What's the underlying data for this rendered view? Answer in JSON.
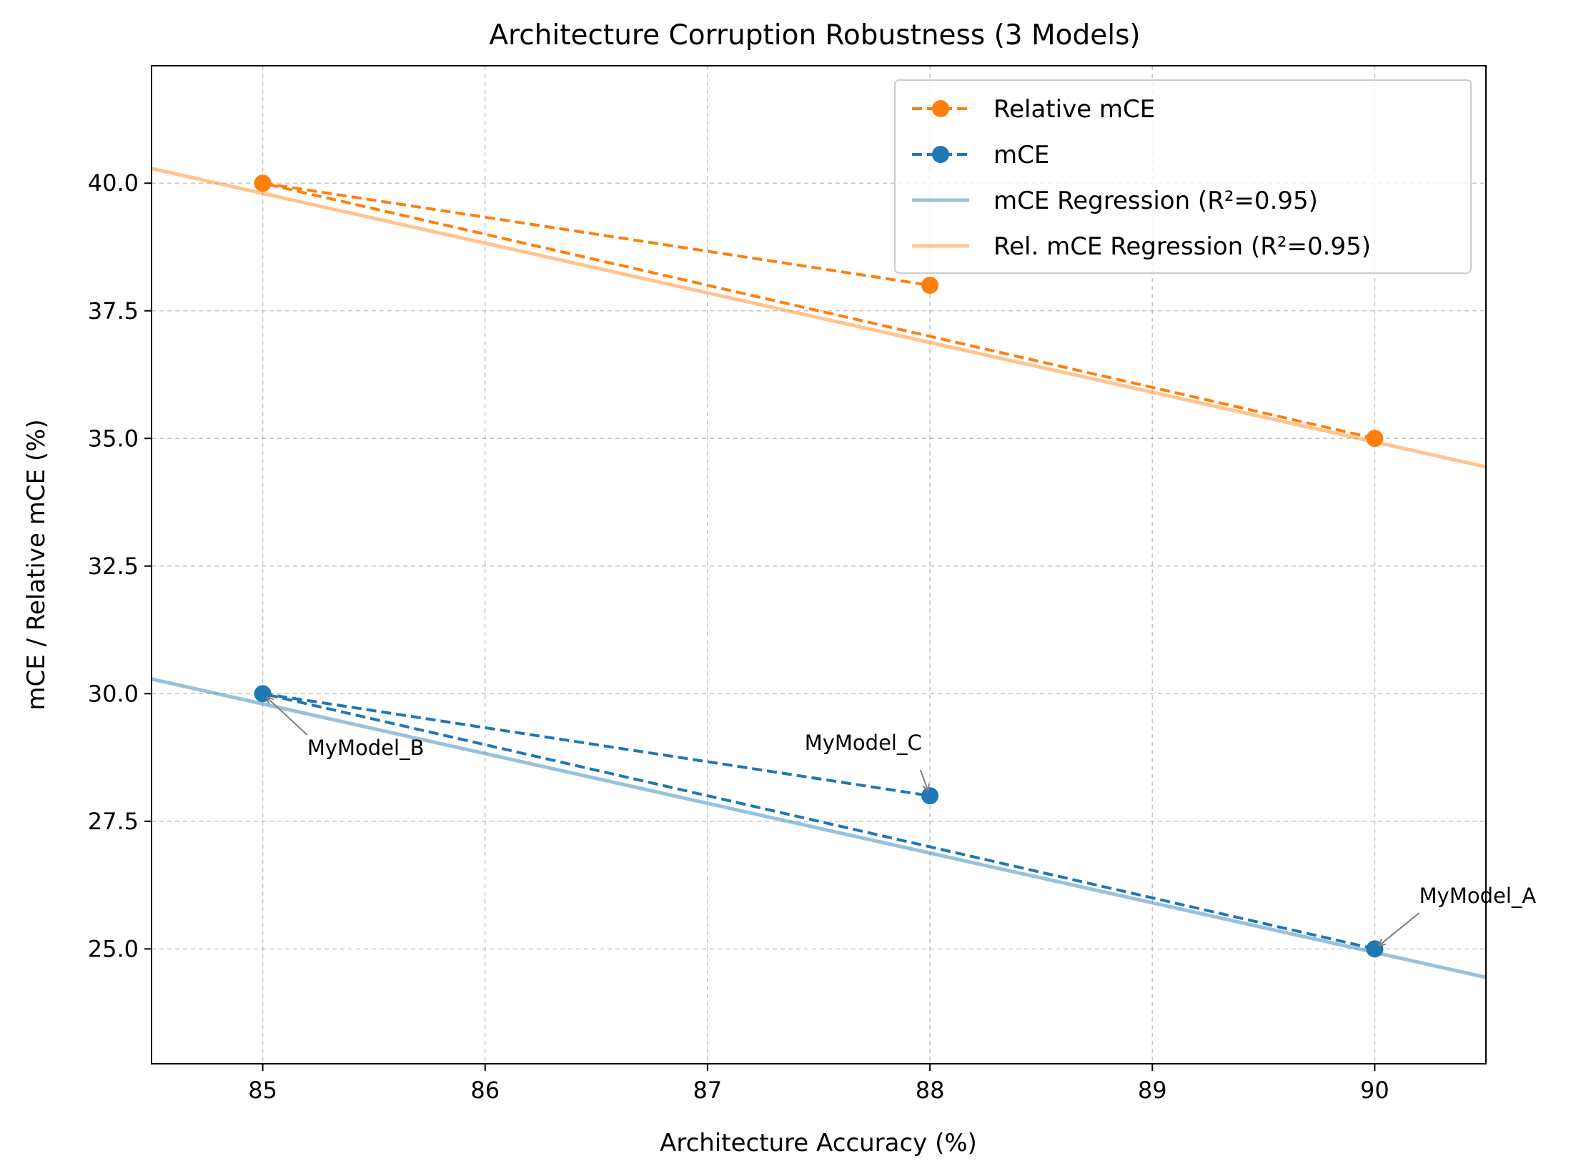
{
  "chart_data": {
    "type": "line",
    "title": "Architecture Corruption Robustness (3 Models)",
    "xlabel": "Architecture Accuracy (%)",
    "ylabel": "mCE / Relative mCE (%)",
    "xlim": [
      84.5,
      90.5
    ],
    "ylim": [
      22.75,
      42.3
    ],
    "xticks": [
      85,
      86,
      87,
      88,
      89,
      90
    ],
    "xtick_labels": [
      "85",
      "86",
      "87",
      "88",
      "89",
      "90"
    ],
    "yticks": [
      25,
      27.5,
      30,
      32.5,
      35,
      37.5,
      40
    ],
    "ytick_labels": [
      "25.0",
      "27.5",
      "30.0",
      "32.5",
      "35.0",
      "37.5",
      "40.0"
    ],
    "grid": true,
    "legend_position": "upper-right",
    "series": [
      {
        "name": "Relative mCE",
        "color": "#ff7f0e",
        "style": "dashed-with-markers",
        "x": [
          90,
          85,
          88
        ],
        "y": [
          35,
          40,
          38
        ]
      },
      {
        "name": "mCE",
        "color": "#1f77b4",
        "style": "dashed-with-markers",
        "x": [
          90,
          85,
          88
        ],
        "y": [
          25,
          30,
          28
        ]
      }
    ],
    "regressions": [
      {
        "name": "mCE Regression (R²=0.95)",
        "color": "#1f77b4",
        "slope": -0.974,
        "intercept": 112.59
      },
      {
        "name": "Rel. mCE Regression (R²=0.95)",
        "color": "#ff7f0e",
        "slope": -0.974,
        "intercept": 122.59
      }
    ],
    "annotations": [
      {
        "text": "MyModel_A",
        "x": 90,
        "y": 25,
        "text_x": 90.2,
        "text_y": 25.9,
        "align": "start"
      },
      {
        "text": "MyModel_B",
        "x": 85,
        "y": 30,
        "text_x": 85.2,
        "text_y": 28.8,
        "align": "start"
      },
      {
        "text": "MyModel_C",
        "x": 88,
        "y": 28,
        "text_x": 87.7,
        "text_y": 28.9,
        "align": "middle"
      }
    ]
  }
}
